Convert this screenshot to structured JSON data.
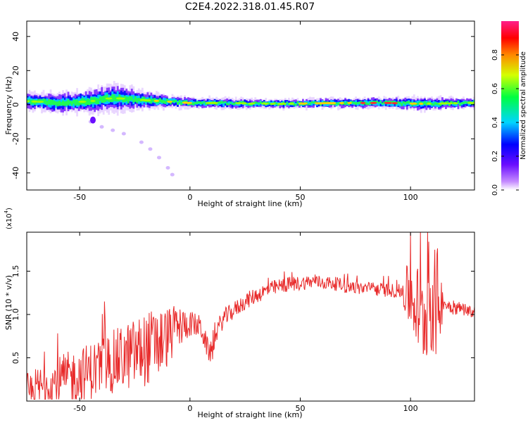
{
  "figure": {
    "title": "C2E4.2022.318.01.45.R07"
  },
  "chart_data": [
    {
      "type": "heatmap",
      "title": "C2E4.2022.318.01.45.R07",
      "xlabel": "Height of straight line (km)",
      "ylabel": "Frequency (Hz)",
      "xlim": [
        -74,
        129
      ],
      "ylim": [
        -50,
        49
      ],
      "xticks": [
        -50,
        0,
        50,
        100
      ],
      "xtick_labels": [
        "-50",
        "0",
        "50",
        "100"
      ],
      "yticks": [
        -40,
        -20,
        0,
        20,
        40
      ],
      "ytick_labels": [
        "-40",
        "-20",
        "0",
        "20",
        "40"
      ],
      "colorbar": {
        "label": "Normalized spectral amplitude",
        "range": [
          0,
          1
        ],
        "ticks": [
          0.0,
          0.2,
          0.4,
          0.6,
          0.8
        ],
        "tick_labels": [
          "0.0",
          "0.2",
          "0.4",
          "0.6",
          "0.8"
        ],
        "colormap": [
          "#ffffff",
          "#8a2be2",
          "#0000ff",
          "#00e5ff",
          "#00ff00",
          "#ffff00",
          "#ff7f00",
          "#ff0000",
          "#ff00ff"
        ]
      },
      "band": {
        "description_points": [
          {
            "x": -72,
            "f": 2,
            "halfwidth": 5,
            "level": 0.35
          },
          {
            "x": -60,
            "f": 1,
            "halfwidth": 6,
            "level": 0.4
          },
          {
            "x": -45,
            "f": 2,
            "halfwidth": 7,
            "level": 0.45
          },
          {
            "x": -35,
            "f": 4,
            "halfwidth": 8,
            "level": 0.5
          },
          {
            "x": -25,
            "f": 3,
            "halfwidth": 6,
            "level": 0.5
          },
          {
            "x": -12,
            "f": 2,
            "halfwidth": 4,
            "level": 0.7
          },
          {
            "x": 0,
            "f": 1,
            "halfwidth": 3,
            "level": 0.6
          },
          {
            "x": 10,
            "f": 1,
            "halfwidth": 3,
            "level": 0.6
          },
          {
            "x": 40,
            "f": 0.5,
            "halfwidth": 2.5,
            "level": 0.55
          },
          {
            "x": 70,
            "f": 1,
            "halfwidth": 3,
            "level": 0.7
          },
          {
            "x": 90,
            "f": 1,
            "halfwidth": 3,
            "level": 0.85
          },
          {
            "x": 105,
            "f": 0.5,
            "halfwidth": 4,
            "level": 0.6
          },
          {
            "x": 128,
            "f": 1,
            "halfwidth": 3,
            "level": 0.55
          }
        ],
        "scatter_tail": [
          {
            "x": -45,
            "f": -10
          },
          {
            "x": -40,
            "f": -13
          },
          {
            "x": -35,
            "f": -15
          },
          {
            "x": -30,
            "f": -17
          },
          {
            "x": -22,
            "f": -22
          },
          {
            "x": -18,
            "f": -26
          },
          {
            "x": -14,
            "f": -31
          },
          {
            "x": -10,
            "f": -37
          },
          {
            "x": -8,
            "f": -41
          }
        ]
      }
    },
    {
      "type": "line",
      "xlabel": "Height of straight line (km)",
      "ylabel": "SNR (10 * v/v)",
      "multiplier_label": "(x10",
      "multiplier_exponent": "4",
      "multiplier_close": ")",
      "xlim": [
        -74,
        129
      ],
      "ylim": [
        0.0,
        1.95
      ],
      "xticks": [
        -50,
        0,
        50,
        100
      ],
      "xtick_labels": [
        "-50",
        "0",
        "50",
        "100"
      ],
      "yticks": [
        0.5,
        1.0,
        1.5
      ],
      "ytick_labels": [
        "0.5",
        "1.0",
        "1.5"
      ],
      "color": "#e82a2a",
      "series": [
        {
          "x": [
            -74,
            -70,
            -65,
            -60,
            -55,
            -50,
            -45,
            -40,
            -35,
            -30,
            -25,
            -20,
            -15,
            -12,
            -10,
            -5,
            0,
            5,
            8,
            10,
            12,
            15,
            20,
            25,
            30,
            35,
            40,
            45,
            50,
            55,
            60,
            65,
            70,
            75,
            80,
            85,
            90,
            95,
            98,
            100,
            103,
            105,
            107,
            109,
            111,
            113,
            115,
            120,
            125,
            129
          ],
          "y": [
            0.08,
            0.12,
            0.18,
            0.22,
            0.27,
            0.3,
            0.35,
            0.4,
            0.45,
            0.5,
            0.55,
            0.6,
            0.65,
            0.7,
            0.75,
            0.85,
            0.9,
            0.85,
            0.6,
            0.55,
            0.8,
            0.95,
            1.05,
            1.15,
            1.22,
            1.28,
            1.32,
            1.35,
            1.36,
            1.38,
            1.37,
            1.36,
            1.33,
            1.31,
            1.3,
            1.29,
            1.28,
            1.27,
            1.25,
            1.22,
            1.1,
            0.9,
            1.05,
            1.2,
            1.1,
            1.15,
            1.12,
            1.08,
            1.06,
            1.02
          ]
        }
      ],
      "noise_amplitude": [
        {
          "x": -74,
          "amp": 0.25
        },
        {
          "x": -40,
          "amp": 0.35
        },
        {
          "x": -15,
          "amp": 0.45
        },
        {
          "x": 0,
          "amp": 0.15
        },
        {
          "x": 20,
          "amp": 0.1
        },
        {
          "x": 60,
          "amp": 0.08
        },
        {
          "x": 95,
          "amp": 0.08
        },
        {
          "x": 100,
          "amp": 0.45
        },
        {
          "x": 112,
          "amp": 0.7
        },
        {
          "x": 115,
          "amp": 0.1
        },
        {
          "x": 129,
          "amp": 0.06
        }
      ]
    }
  ]
}
